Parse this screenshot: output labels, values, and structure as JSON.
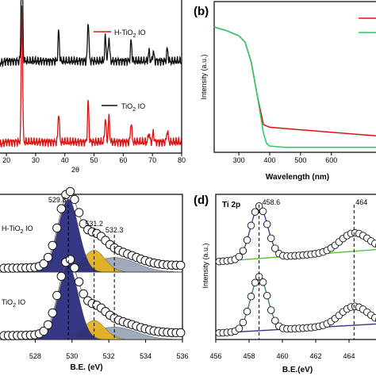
{
  "colors": {
    "red": "#dd1111",
    "black": "#111111",
    "green": "#22cc66",
    "navy": "#2b2d7e",
    "gold": "#e4b21c",
    "gray": "#9aa6b8",
    "ti_green": "#55c233",
    "ti_purple": "#3d2f8a",
    "ti_teal": "#2e7d6b"
  },
  "chart_data": [
    {
      "id": "a",
      "type": "line",
      "panel_label": "",
      "xlabel": "2θ",
      "ylabel": "",
      "xlim": [
        14,
        80
      ],
      "x_ticks": [
        20,
        30,
        40,
        50,
        60,
        70,
        80
      ],
      "x_tick_labels": [
        "20",
        "30",
        "40",
        "50",
        "60",
        "70",
        "80"
      ],
      "peaks": [
        {
          "x": 25.3,
          "h": 1.0
        },
        {
          "x": 37.9,
          "h": 0.22
        },
        {
          "x": 48.0,
          "h": 0.3
        },
        {
          "x": 53.9,
          "h": 0.18
        },
        {
          "x": 55.1,
          "h": 0.18
        },
        {
          "x": 62.7,
          "h": 0.15
        },
        {
          "x": 68.8,
          "h": 0.07
        },
        {
          "x": 70.3,
          "h": 0.07
        },
        {
          "x": 75.1,
          "h": 0.09
        }
      ],
      "series": [
        {
          "name": "H-TiO2 IO",
          "legend_main": "H-TiO",
          "legend_sub": "2",
          "legend_tail": " IO",
          "color_key": "red",
          "offset": 1
        },
        {
          "name": "TiO2 IO",
          "legend_main": "TiO",
          "legend_sub": "2",
          "legend_tail": " IO",
          "color_key": "black",
          "offset": 0
        }
      ]
    },
    {
      "id": "b",
      "type": "line",
      "panel_label": "(b)",
      "xlabel": "Wavelength (nm)",
      "ylabel": "Intensity (a.u.)",
      "xlim": [
        220,
        760
      ],
      "x_ticks": [
        300,
        400,
        500,
        600
      ],
      "x_tick_labels": [
        "300",
        "400",
        "500",
        "600"
      ],
      "series": [
        {
          "name": "",
          "color_key": "red",
          "x": [
            220,
            260,
            300,
            320,
            340,
            360,
            380,
            400,
            450,
            500,
            600,
            700,
            760
          ],
          "y": [
            1.0,
            0.97,
            0.93,
            0.88,
            0.72,
            0.45,
            0.22,
            0.2,
            0.19,
            0.18,
            0.16,
            0.14,
            0.13
          ]
        },
        {
          "name": "",
          "color_key": "green",
          "x": [
            220,
            260,
            300,
            320,
            340,
            360,
            380,
            390,
            400,
            450,
            500,
            600,
            700,
            760
          ],
          "y": [
            1.0,
            0.97,
            0.93,
            0.88,
            0.72,
            0.45,
            0.15,
            0.07,
            0.05,
            0.04,
            0.04,
            0.04,
            0.04,
            0.04
          ]
        }
      ]
    },
    {
      "id": "c",
      "type": "area",
      "panel_label": "",
      "xlabel": "B.E. (eV)",
      "ylabel": "",
      "xlim": [
        526,
        536
      ],
      "x_ticks": [
        528,
        530,
        532,
        534,
        536
      ],
      "x_tick_labels": [
        "528",
        "530",
        "532",
        "534",
        "536"
      ],
      "peak_labels": [
        {
          "x": 529.8,
          "text": "529.8"
        },
        {
          "x": 531.2,
          "text": "531.2"
        },
        {
          "x": 532.3,
          "text": "532.3"
        }
      ],
      "curves": [
        {
          "name": "H-TiO2 IO",
          "legend_main": "H-TiO",
          "legend_sub": "2",
          "legend_tail": " IO",
          "components": [
            {
              "center": 529.8,
              "fwhm": 1.3,
              "amp": 1.0,
              "color_key": "navy"
            },
            {
              "center": 531.2,
              "fwhm": 1.4,
              "amp": 0.3,
              "color_key": "gold"
            },
            {
              "center": 532.3,
              "fwhm": 2.8,
              "amp": 0.2,
              "color_key": "gray"
            }
          ]
        },
        {
          "name": "TiO2 IO",
          "legend_main": "TiO",
          "legend_sub": "2",
          "legend_tail": " IO",
          "components": [
            {
              "center": 529.8,
              "fwhm": 1.3,
              "amp": 1.0,
              "color_key": "navy"
            },
            {
              "center": 531.2,
              "fwhm": 1.4,
              "amp": 0.26,
              "color_key": "gold"
            },
            {
              "center": 532.3,
              "fwhm": 2.8,
              "amp": 0.17,
              "color_key": "gray"
            }
          ]
        }
      ]
    },
    {
      "id": "d",
      "type": "scatter",
      "panel_label": "(d)",
      "title": "Ti 2p",
      "xlabel": "B.E.(eV)",
      "ylabel": "Intensity (a.u.)",
      "xlim": [
        456,
        466
      ],
      "x_ticks": [
        456,
        458,
        460,
        462,
        464
      ],
      "x_tick_labels": [
        "456",
        "458",
        "460",
        "462",
        "464"
      ],
      "peak_labels": [
        {
          "x": 458.6,
          "text": "458.6"
        },
        {
          "x": 464.3,
          "text": "464"
        }
      ],
      "peaks": [
        {
          "center": 458.6,
          "fwhm": 1.2,
          "amp": 1.0
        },
        {
          "center": 464.3,
          "fwhm": 2.0,
          "amp": 0.35
        }
      ]
    }
  ]
}
